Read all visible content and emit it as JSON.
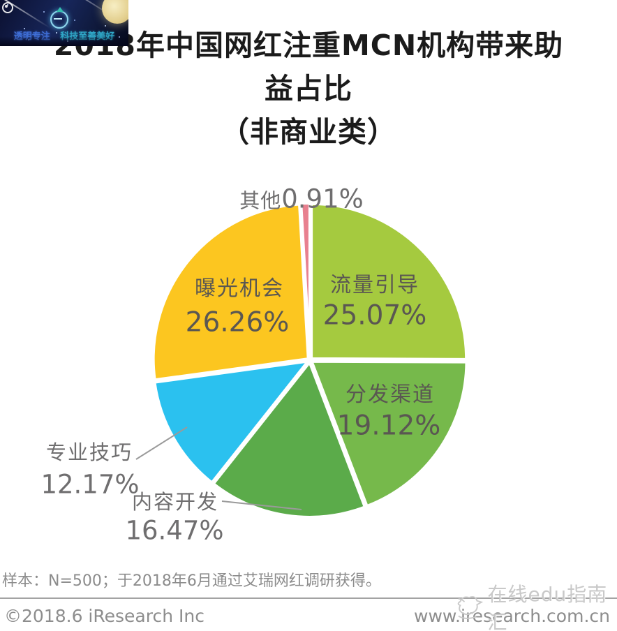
{
  "banner": {
    "slogan_left": "透明专注",
    "slogan_right": "科技至善美好"
  },
  "title": {
    "line1": "2018年中国网红注重MCN机构带来助",
    "line2": "益占比",
    "line3": "（非商业类）"
  },
  "chart_data": {
    "type": "pie",
    "title": "2018年中国网红注重MCN机构带来助益占比（非商业类）",
    "start_angle_deg": 0,
    "direction": "clockwise",
    "total": 100,
    "legend_position": "none",
    "segments": [
      {
        "name": "流量引导",
        "value": 25.07,
        "display": "25.07%",
        "color": "#a5ca3f",
        "label_position": "inside"
      },
      {
        "name": "分发渠道",
        "value": 19.12,
        "display": "19.12%",
        "color": "#76b94b",
        "label_position": "inside"
      },
      {
        "name": "内容开发",
        "value": 16.47,
        "display": "16.47%",
        "color": "#5bab4a",
        "label_position": "outside"
      },
      {
        "name": "专业技巧",
        "value": 12.17,
        "display": "12.17%",
        "color": "#2bc1ef",
        "label_position": "outside"
      },
      {
        "name": "曝光机会",
        "value": 26.26,
        "display": "26.26%",
        "color": "#fcc620",
        "label_position": "inside"
      },
      {
        "name": "其他",
        "value": 0.91,
        "display": "0.91%",
        "color": "#e8808f",
        "label_position": "outside"
      }
    ]
  },
  "footer": {
    "sample_note": "样本：N=500；于2018年6月通过艾瑞网红调研获得。",
    "copyright": "©2018.6 iResearch Inc",
    "website": "www.iresearch.com.cn",
    "watermark": "在线edu指南汇"
  },
  "colors": {
    "title_text": "#1b1b1b",
    "inside_label_text": "#5a5752",
    "outside_label_text": "#6f6e6f",
    "footer_text": "#8d8d8d",
    "watermark_text": "#c9c9c9",
    "leader_line": "#9a9a9a",
    "slice_gap": "#ffffff"
  }
}
